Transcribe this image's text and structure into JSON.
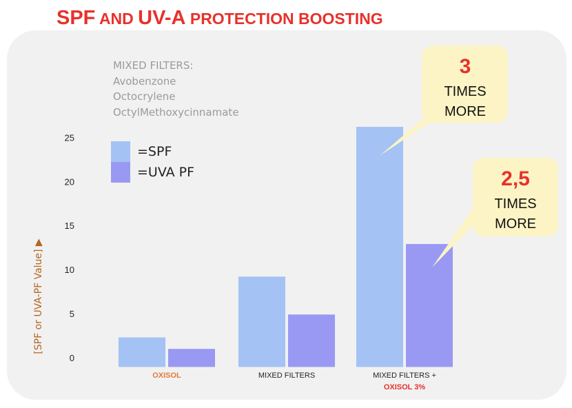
{
  "title": {
    "part1": "SPF",
    "part2": " AND ",
    "part3": "UV-A",
    "part4": " PROTECTION BOOSTING"
  },
  "filters_box": {
    "heading": "MIXED FILTERS:",
    "items": [
      "Avobenzone",
      "Octocrylene",
      "OctylMethoxycinnamate"
    ]
  },
  "legend": [
    {
      "label": "=SPF",
      "color": "#a4c2f4"
    },
    {
      "label": "=UVA PF",
      "color": "#9999f4"
    }
  ],
  "callouts": [
    {
      "number": "3",
      "line1": "TIMES",
      "line2": "MORE"
    },
    {
      "number": "2,5",
      "line1": "TIMES",
      "line2": "MORE"
    }
  ],
  "chart_data": {
    "type": "bar",
    "categories": [
      {
        "line1": "OXISOL",
        "line1_color": "#e07b39",
        "line2": ""
      },
      {
        "line1": "MIXED FILTERS",
        "line1_color": "#222222",
        "line2": ""
      },
      {
        "line1": "MIXED FILTERS +",
        "line1_color": "#222222",
        "line2": "OXISOL 3%"
      }
    ],
    "series": [
      {
        "legend_label": "=SPF",
        "color": "#a4c2f4",
        "values": [
          2.3,
          9.2,
          26.2
        ]
      },
      {
        "legend_label": "=UVA PF",
        "color": "#9999f4",
        "values": [
          1.0,
          4.9,
          12.9
        ]
      }
    ],
    "ylabel": "[SPF or UVA-PF Value] ▶",
    "yticks": [
      0,
      5,
      10,
      15,
      20,
      25
    ],
    "ylim": [
      0,
      26.2
    ],
    "baseline_value": 0.8,
    "grid": false,
    "legend_position": "top-left",
    "highlight_color": "#e8312a",
    "callout_color": "#fdf4c5"
  }
}
